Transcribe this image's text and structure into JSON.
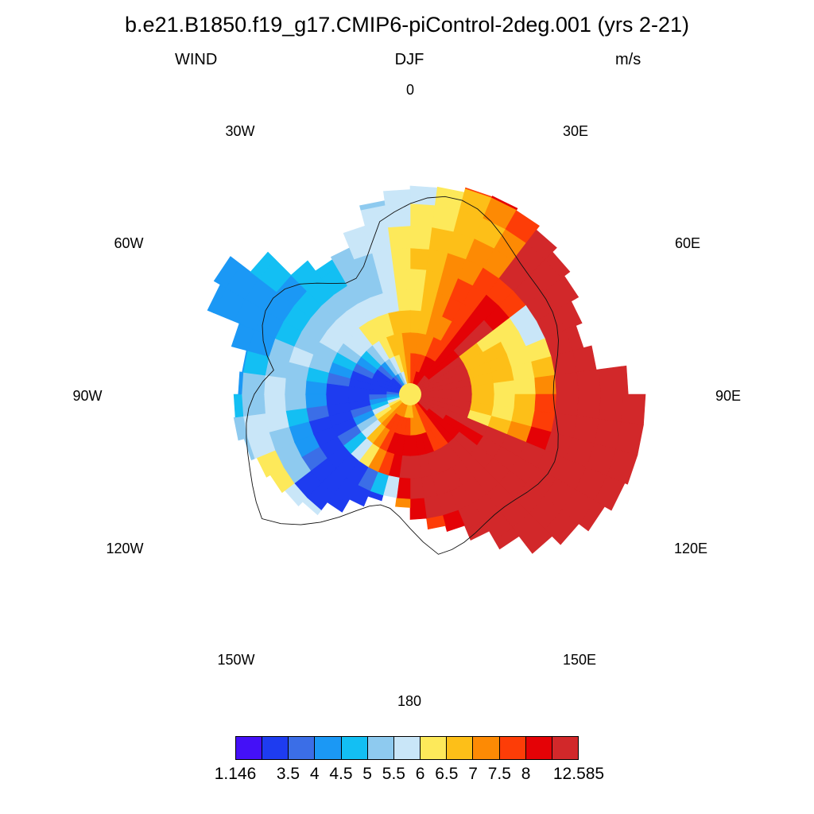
{
  "title": "b.e21.B1850.f19_g17.CMIP6-piControl-2deg.001 (yrs 2-21)",
  "subtitle_left": "WIND",
  "subtitle_center": "DJF",
  "subtitle_right": "m/s",
  "lon_labels": {
    "l0": "0",
    "l30e": "30E",
    "l60e": "60E",
    "l90e": "90E",
    "l120e": "120E",
    "l150e": "150E",
    "l180": "180",
    "l150w": "150W",
    "l120w": "120W",
    "l90w": "90W",
    "l60w": "60W",
    "l30w": "30W"
  },
  "colorbar": {
    "colors": [
      "#4410f7",
      "#1e3cf0",
      "#3b6ee7",
      "#1b98f5",
      "#13bff3",
      "#8ecaef",
      "#c9e6f8",
      "#fde95a",
      "#fdbf18",
      "#fd8a04",
      "#fd3d07",
      "#e40206",
      "#d2282a"
    ],
    "labels": [
      "1.146",
      "3.5",
      "4",
      "4.5",
      "5",
      "5.5",
      "6",
      "6.5",
      "7",
      "7.5",
      "8",
      "12.585"
    ]
  },
  "map": {
    "projection": "south polar stereographic",
    "variable": "WIND",
    "units": "m/s",
    "season": "DJF"
  }
}
